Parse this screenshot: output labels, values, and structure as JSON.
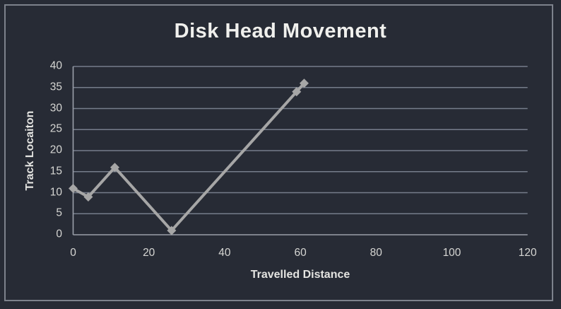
{
  "window": {
    "background": "#272B35",
    "frame_border_color": "#7D828C"
  },
  "chart_data": {
    "type": "line",
    "title": "Disk Head Movement",
    "xlabel": "Travelled Distance",
    "ylabel": "Track Locaiton",
    "x": [
      0,
      4,
      11,
      26,
      59,
      61
    ],
    "y": [
      11,
      9,
      16,
      1,
      34,
      36
    ],
    "xlim": [
      0,
      120
    ],
    "ylim": [
      0,
      40
    ],
    "x_ticks": [
      0,
      20,
      40,
      60,
      80,
      100,
      120
    ],
    "y_ticks": [
      0,
      5,
      10,
      15,
      20,
      25,
      30,
      35,
      40
    ],
    "grid": "horizontal-only",
    "legend": "none",
    "marker": "diamond",
    "colors": {
      "series": "#A6A6A6",
      "gridline": "#767D8B",
      "axis_line": "#9BA0AA",
      "tick_label": "#D6D6D3",
      "title": "#F0F0ED",
      "axis_title": "#E4E4E1"
    }
  }
}
